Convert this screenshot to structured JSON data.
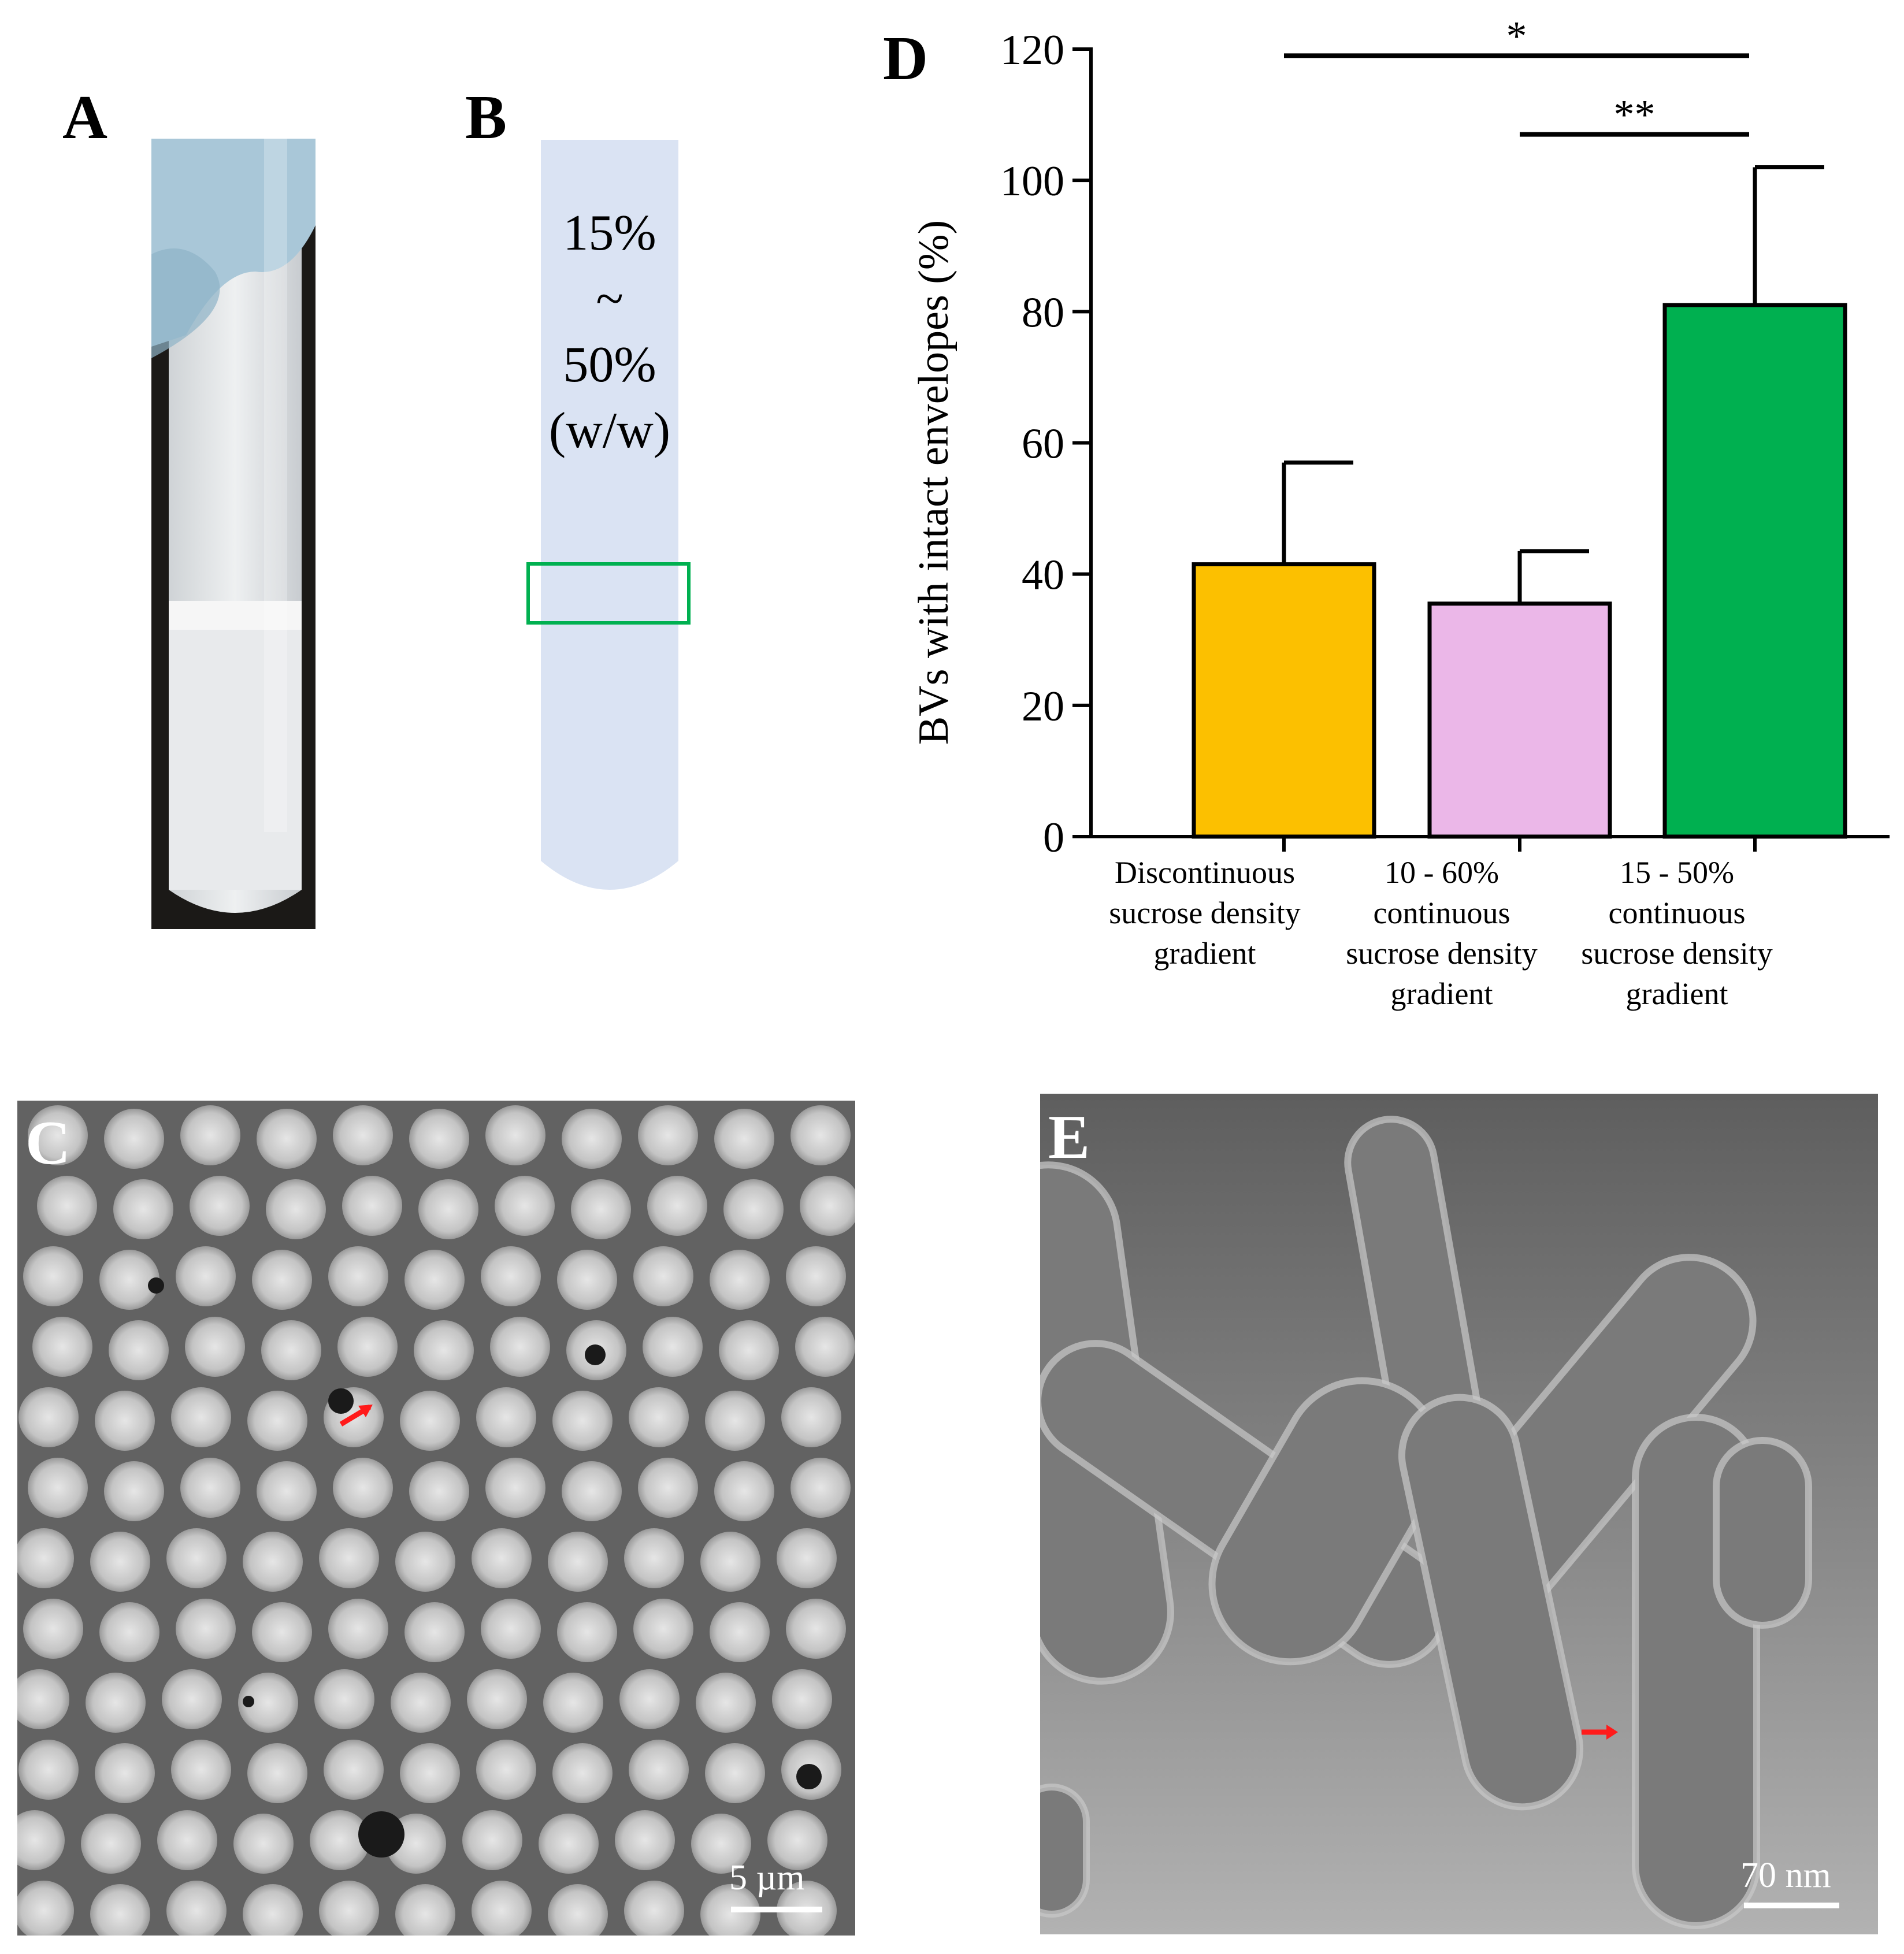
{
  "panels": {
    "a": {
      "letter": "A"
    },
    "b": {
      "letter": "B",
      "tube_label": [
        "15%",
        "~",
        "50%",
        "(w/w)"
      ]
    },
    "c": {
      "letter": "C",
      "scale_bar": "5 µm"
    },
    "d": {
      "letter": "D"
    },
    "e": {
      "letter": "E",
      "scale_bar": "70 nm"
    }
  },
  "chart_data": {
    "type": "bar",
    "ylabel": "BVs with intact envelopes (%)",
    "ylim": [
      0,
      120
    ],
    "yticks": [
      "0",
      "20",
      "40",
      "60",
      "80",
      "100",
      "120"
    ],
    "categories": [
      "Discontinuous sucrose density gradient",
      "10 - 60% continuous sucrose density gradient",
      "15 - 50% continuous sucrose density gradient"
    ],
    "category_lines": [
      [
        "Discontinuous",
        "sucrose density",
        "gradient"
      ],
      [
        "10 - 60%",
        "continuous",
        "sucrose density",
        "gradient"
      ],
      [
        "15 - 50%",
        "continuous",
        "sucrose density",
        "gradient"
      ]
    ],
    "values": [
      41.5,
      35.5,
      81
    ],
    "errors": [
      15.5,
      8,
      21
    ],
    "colors": [
      "#fcc000",
      "#ebb7e8",
      "#00b050"
    ],
    "significance": [
      {
        "from": 0,
        "to": 2,
        "label": "*",
        "y": 119
      },
      {
        "from": 1,
        "to": 2,
        "label": "**",
        "y": 107
      }
    ],
    "grid": false
  }
}
